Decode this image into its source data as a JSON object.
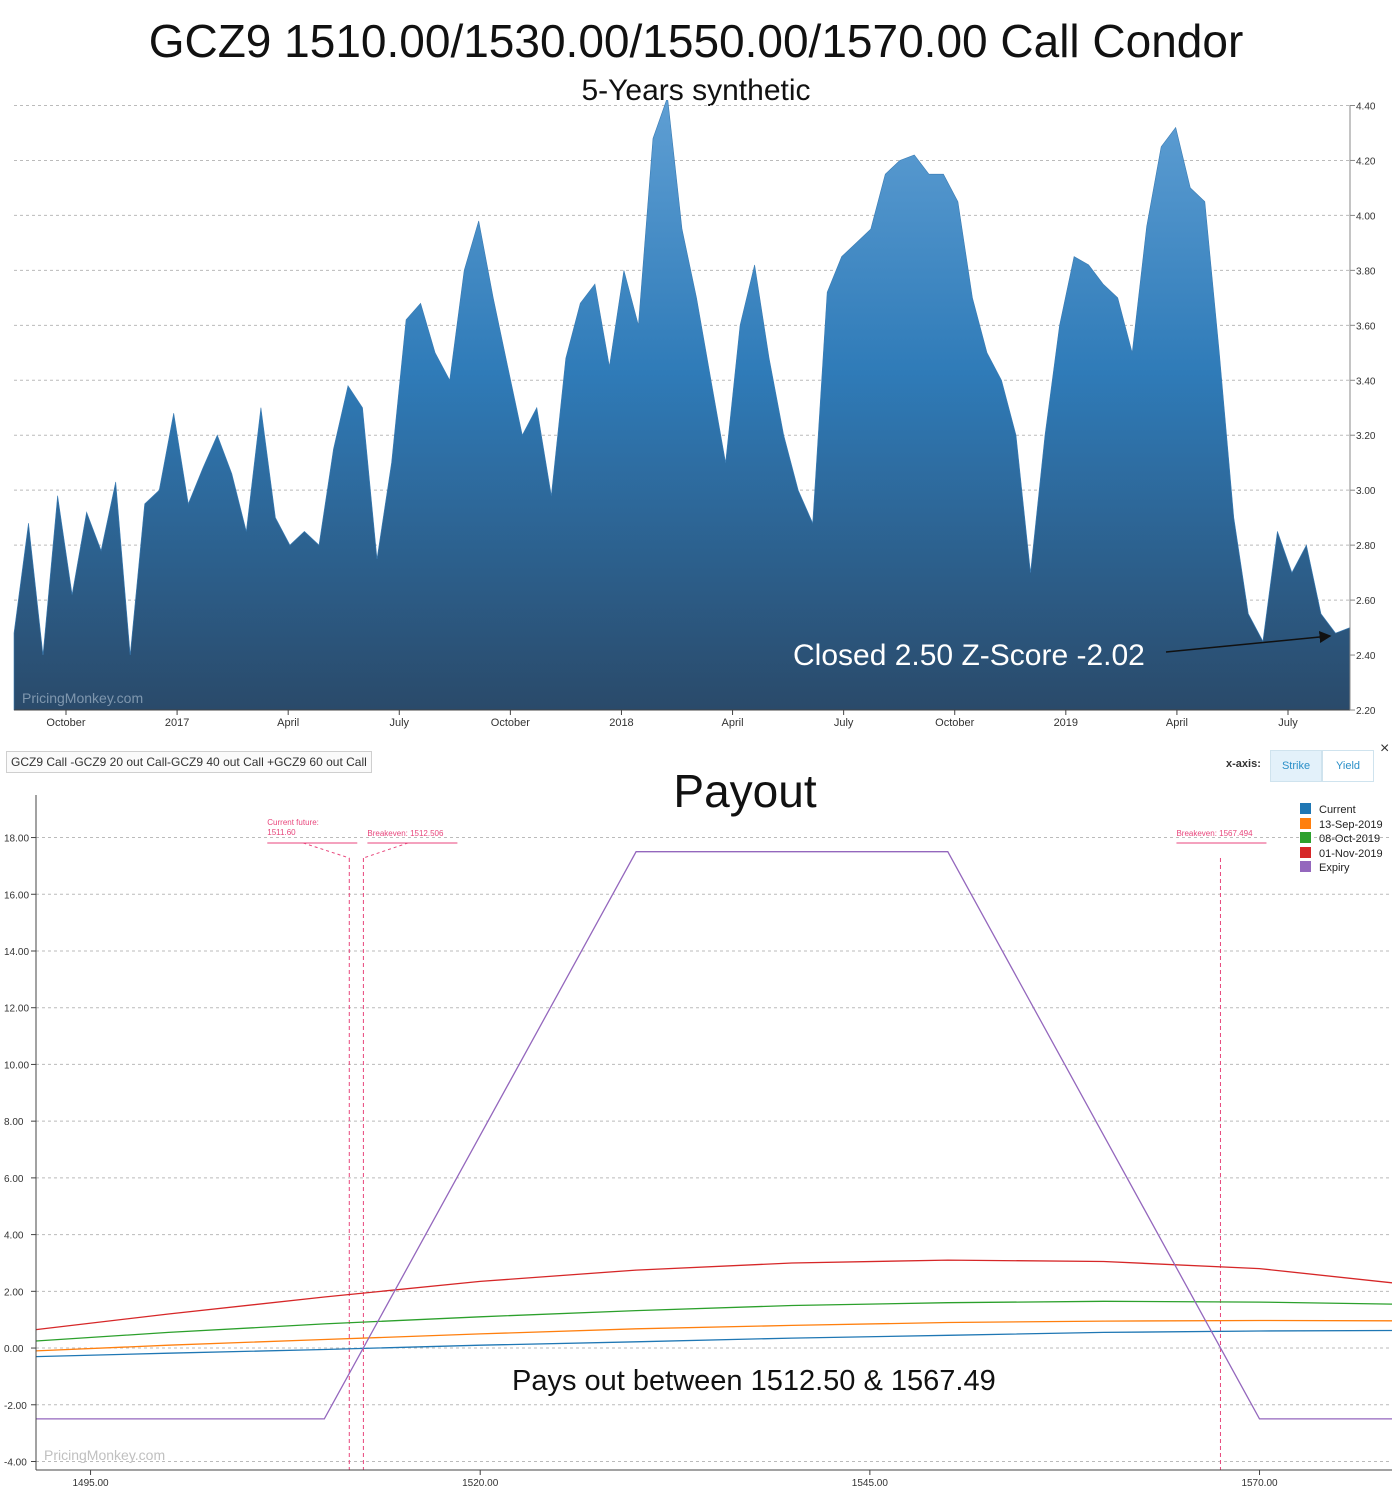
{
  "header": {
    "title": "GCZ9 1510.00/1530.00/1550.00/1570.00 Call Condor",
    "subtitle": "5-Years synthetic"
  },
  "top_chart": {
    "annotation": "Closed 2.50 Z-Score -2.02",
    "watermark": "PricingMonkey.com",
    "colors": {
      "area_top": "#5f9fd4",
      "area_mid": "#2f7bb8",
      "area_bottom": "#2a4a6a"
    }
  },
  "payout": {
    "title": "Payout",
    "strategy_label": "GCZ9 Call -GCZ9 20 out Call-GCZ9 40 out Call +GCZ9 60 out Call",
    "xaxis_label": "x-axis:",
    "toggle_strike": "Strike",
    "toggle_yield": "Yield",
    "close_symbol": "×",
    "annotation": "Pays out between 1512.50 & 1567.49",
    "watermark": "PricingMonkey.com",
    "markers": [
      {
        "label_line1": "Current future:",
        "label_line2": "1511.60",
        "x": 1511.6
      },
      {
        "label_line1": "Breakeven: 1512.506",
        "label_line2": "",
        "x": 1512.506
      },
      {
        "label_line1": "Breakeven: 1567.494",
        "label_line2": "",
        "x": 1567.494
      }
    ],
    "marker_color": "#e8467c"
  },
  "chart_data": [
    {
      "type": "area",
      "title": "GCZ9 1510.00/1530.00/1550.00/1570.00 Call Condor",
      "subtitle": "5-Years synthetic",
      "x_tick_labels": [
        "October",
        "2017",
        "April",
        "July",
        "October",
        "2018",
        "April",
        "July",
        "October",
        "2019",
        "April",
        "July"
      ],
      "y_ticks": [
        2.2,
        2.4,
        2.6,
        2.8,
        3.0,
        3.2,
        3.4,
        3.6,
        3.8,
        4.0,
        4.2,
        4.4
      ],
      "ylim": [
        2.2,
        4.42
      ],
      "grid": true,
      "y_axis_side": "right",
      "series": [
        {
          "values": [
            2.48,
            2.88,
            2.4,
            2.98,
            2.62,
            2.92,
            2.78,
            3.03,
            2.4,
            2.95,
            3.0,
            3.28,
            2.95,
            3.08,
            3.2,
            3.06,
            2.85,
            3.3,
            2.9,
            2.8,
            2.85,
            2.8,
            3.15,
            3.38,
            3.3,
            2.75,
            3.1,
            3.62,
            3.68,
            3.5,
            3.4,
            3.8,
            3.98,
            3.7,
            3.45,
            3.2,
            3.3,
            2.98,
            3.48,
            3.68,
            3.75,
            3.45,
            3.8,
            3.6,
            4.28,
            4.43,
            3.95,
            3.7,
            3.4,
            3.1,
            3.6,
            3.82,
            3.48,
            3.2,
            3.0,
            2.88,
            3.72,
            3.85,
            3.9,
            3.95,
            4.15,
            4.2,
            4.22,
            4.15,
            4.15,
            4.05,
            3.7,
            3.5,
            3.4,
            3.2,
            2.7,
            3.2,
            3.6,
            3.85,
            3.82,
            3.75,
            3.7,
            3.5,
            3.96,
            4.25,
            4.32,
            4.1,
            4.05,
            3.5,
            2.9,
            2.55,
            2.45,
            2.85,
            2.7,
            2.8,
            2.55,
            2.48,
            2.5
          ]
        }
      ]
    },
    {
      "type": "line",
      "title": "Payout",
      "xlim": [
        1491.5,
        1578.5
      ],
      "ylim": [
        -4.3,
        19.5
      ],
      "x_ticks": [
        1495.0,
        1520.0,
        1545.0,
        1570.0
      ],
      "y_ticks": [
        -4.0,
        -2.0,
        0.0,
        2.0,
        4.0,
        6.0,
        8.0,
        10.0,
        12.0,
        14.0,
        16.0,
        18.0
      ],
      "grid": true,
      "legend": "top-right",
      "series": [
        {
          "name": "Current",
          "color": "#1f77b4",
          "x": [
            1491.5,
            1500,
            1510,
            1520,
            1530,
            1540,
            1550,
            1560,
            1570,
            1578.5
          ],
          "y": [
            -0.3,
            -0.18,
            -0.05,
            0.1,
            0.22,
            0.35,
            0.45,
            0.55,
            0.6,
            0.62
          ]
        },
        {
          "name": "13-Sep-2019",
          "color": "#ff7f0e",
          "x": [
            1491.5,
            1500,
            1510,
            1520,
            1530,
            1540,
            1550,
            1560,
            1570,
            1578.5
          ],
          "y": [
            -0.1,
            0.1,
            0.3,
            0.5,
            0.68,
            0.8,
            0.9,
            0.95,
            0.97,
            0.96
          ]
        },
        {
          "name": "08-Oct-2019",
          "color": "#2ca02c",
          "x": [
            1491.5,
            1500,
            1510,
            1520,
            1530,
            1540,
            1550,
            1560,
            1570,
            1578.5
          ],
          "y": [
            0.25,
            0.55,
            0.85,
            1.1,
            1.32,
            1.5,
            1.6,
            1.65,
            1.62,
            1.55
          ]
        },
        {
          "name": "01-Nov-2019",
          "color": "#d62728",
          "x": [
            1491.5,
            1500,
            1510,
            1520,
            1530,
            1540,
            1550,
            1560,
            1570,
            1578.5
          ],
          "y": [
            0.65,
            1.2,
            1.8,
            2.35,
            2.75,
            3.0,
            3.1,
            3.05,
            2.8,
            2.3
          ]
        },
        {
          "name": "Expiry",
          "color": "#9467bd",
          "x": [
            1491.5,
            1510,
            1530,
            1550,
            1570,
            1578.5
          ],
          "y": [
            -2.5,
            -2.5,
            17.5,
            17.5,
            -2.5,
            -2.5
          ]
        }
      ]
    }
  ]
}
